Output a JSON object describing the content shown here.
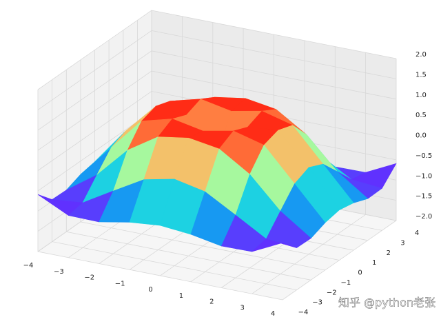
{
  "chart_data": {
    "type": "surface3d",
    "colormap": "rainbow",
    "x": [
      -4,
      -3,
      -2,
      -1,
      0,
      1,
      2,
      3,
      4
    ],
    "y": [
      -4,
      -3,
      -2,
      -1,
      0,
      1,
      2,
      3,
      4
    ],
    "z": [
      [
        -0.59,
        -0.96,
        -0.97,
        -0.83,
        -0.76,
        -0.83,
        -0.97,
        -0.96,
        -0.59
      ],
      [
        -0.96,
        -0.89,
        -0.45,
        -0.02,
        0.14,
        -0.02,
        -0.45,
        -0.89,
        -0.96
      ],
      [
        -0.97,
        -0.45,
        0.31,
        0.79,
        0.91,
        0.79,
        0.31,
        -0.45,
        -0.97
      ],
      [
        -0.83,
        -0.02,
        0.79,
        0.99,
        0.84,
        0.99,
        0.79,
        -0.02,
        -0.83
      ],
      [
        -0.76,
        0.14,
        0.91,
        0.84,
        0,
        0.84,
        0.91,
        0.14,
        -0.76
      ],
      [
        -0.83,
        -0.02,
        0.79,
        0.99,
        0.84,
        0.99,
        0.79,
        -0.02,
        -0.83
      ],
      [
        -0.97,
        -0.45,
        0.31,
        0.79,
        0.91,
        0.79,
        0.31,
        -0.45,
        -0.97
      ],
      [
        -0.96,
        -0.89,
        -0.45,
        -0.02,
        0.14,
        -0.02,
        -0.45,
        -0.89,
        -0.96
      ],
      [
        -0.59,
        -0.96,
        -0.97,
        -0.83,
        -0.76,
        -0.83,
        -0.97,
        -0.96,
        -0.59
      ]
    ],
    "xlim": [
      -4,
      4
    ],
    "ylim": [
      -4,
      4
    ],
    "zlim": [
      -2,
      2
    ],
    "xticks": [
      {
        "value": -4,
        "label": "−4"
      },
      {
        "value": -3,
        "label": "−3"
      },
      {
        "value": -2,
        "label": "−2"
      },
      {
        "value": -1,
        "label": "−1"
      },
      0,
      1,
      2,
      3,
      4
    ],
    "yticks": [
      {
        "value": -4,
        "label": "−4"
      },
      {
        "value": -3,
        "label": "−3"
      },
      {
        "value": -2,
        "label": "−2"
      },
      {
        "value": -1,
        "label": "−1"
      },
      0,
      1,
      2,
      3,
      4
    ],
    "zticks": [
      {
        "value": -2,
        "label": "−2.0"
      },
      {
        "value": -1.5,
        "label": "−1.5"
      },
      {
        "value": -1,
        "label": "−1.0"
      },
      {
        "value": -0.5,
        "label": "−0.5"
      },
      {
        "value": 0,
        "label": "0.0"
      },
      {
        "value": 0.5,
        "label": "0.5"
      },
      {
        "value": 1,
        "label": "1.0"
      },
      {
        "value": 1.5,
        "label": "1.5"
      },
      {
        "value": 2,
        "label": "2.0"
      }
    ],
    "grid": true,
    "watermark": "知乎 @python老张"
  }
}
